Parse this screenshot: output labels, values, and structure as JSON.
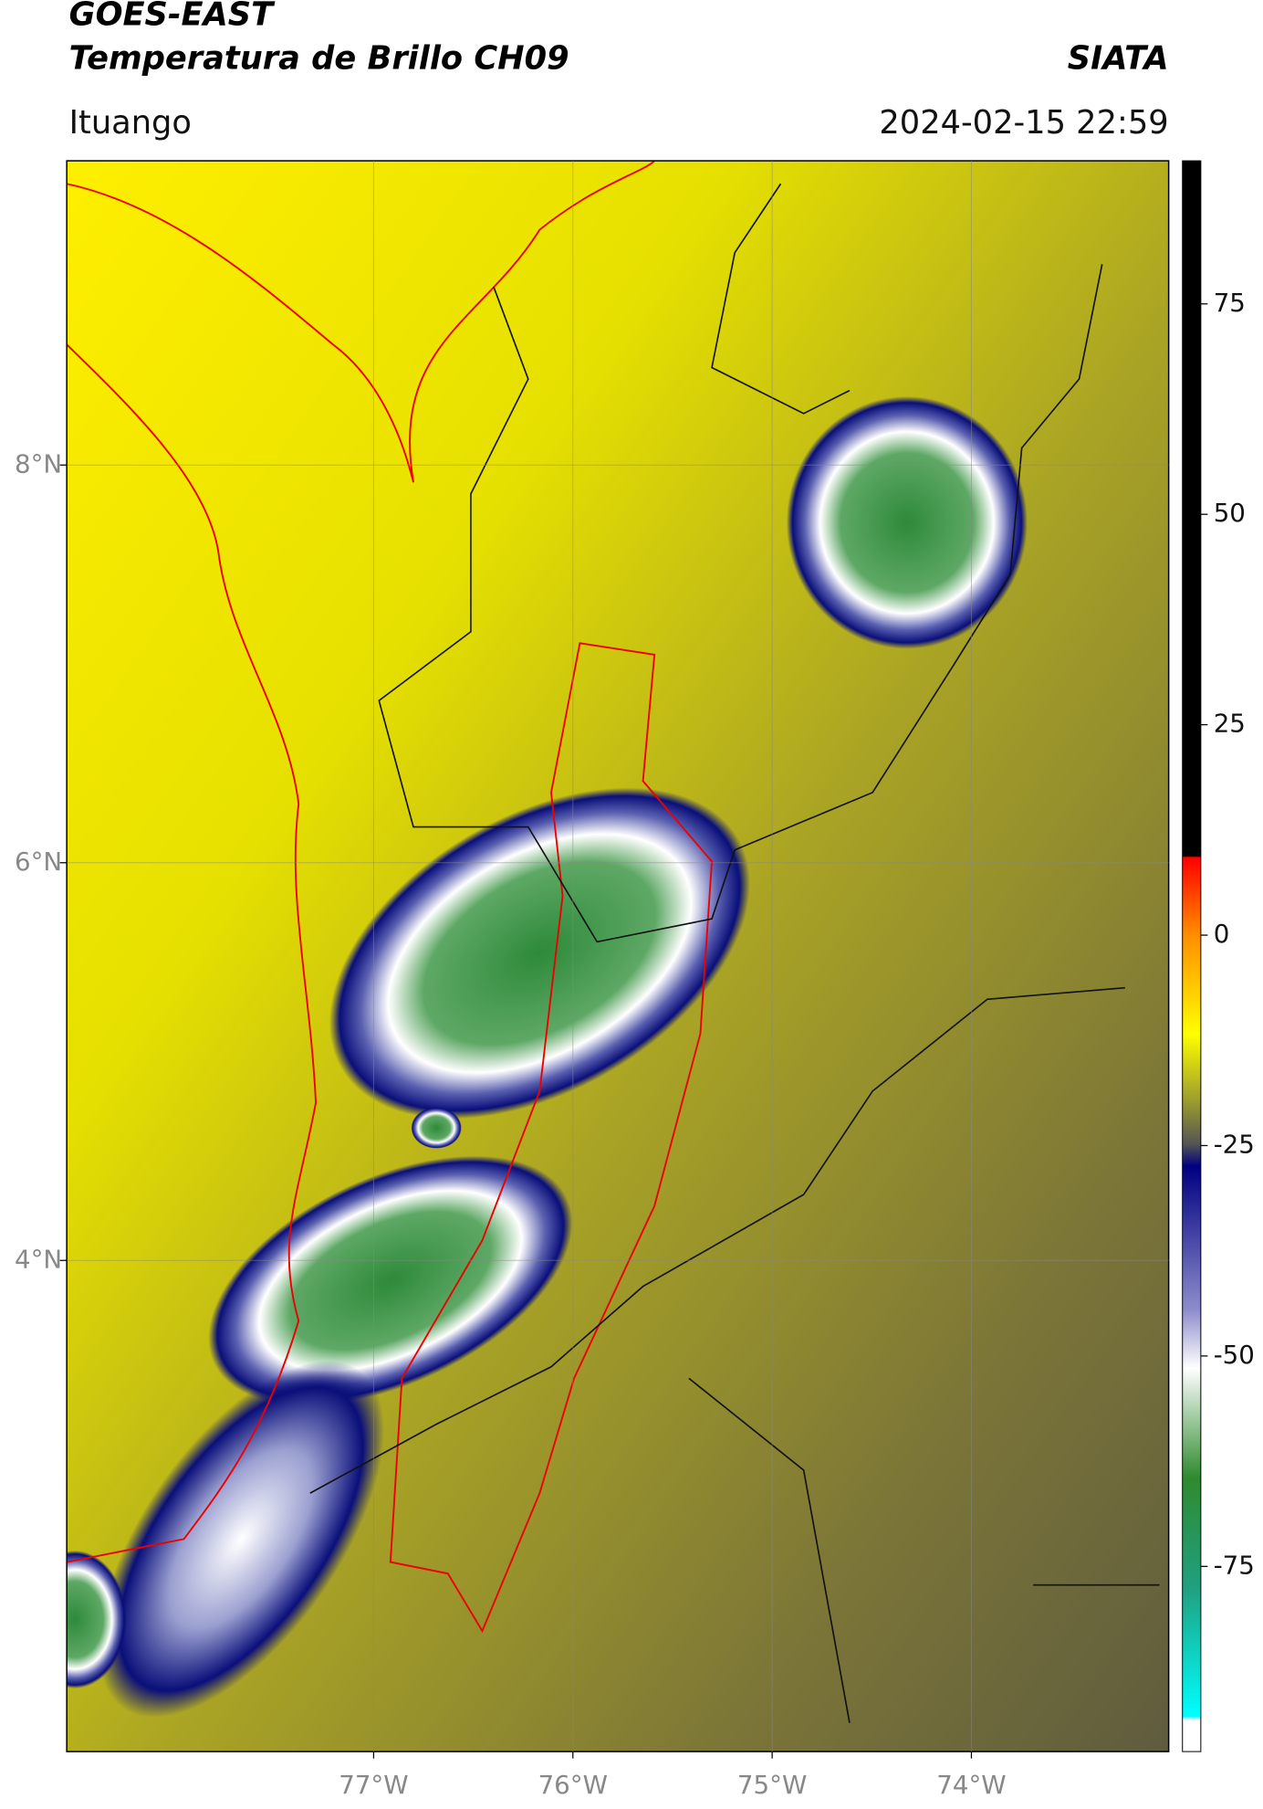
{
  "header": {
    "title": "GOES-EAST",
    "subtitle": "Temperatura de Brillo CH09",
    "source": "SIATA",
    "location": "Ituango",
    "datetime": "2024-02-15 22:59"
  },
  "map": {
    "xlim": [
      -78.54,
      -73.01
    ],
    "ylim": [
      1.53,
      9.53
    ],
    "xticks": [
      {
        "value": -77,
        "label": "77°W"
      },
      {
        "value": -76,
        "label": "76°W"
      },
      {
        "value": -75,
        "label": "75°W"
      },
      {
        "value": -74,
        "label": "74°W"
      }
    ],
    "yticks": [
      {
        "value": 8,
        "label": "8°N"
      },
      {
        "value": 6,
        "label": "6°N"
      },
      {
        "value": 4,
        "label": "4°N"
      }
    ]
  },
  "colorbar": {
    "lim": [
      -97,
      92
    ],
    "ticks": [
      75,
      50,
      25,
      0,
      -25,
      -50,
      -75
    ]
  }
}
